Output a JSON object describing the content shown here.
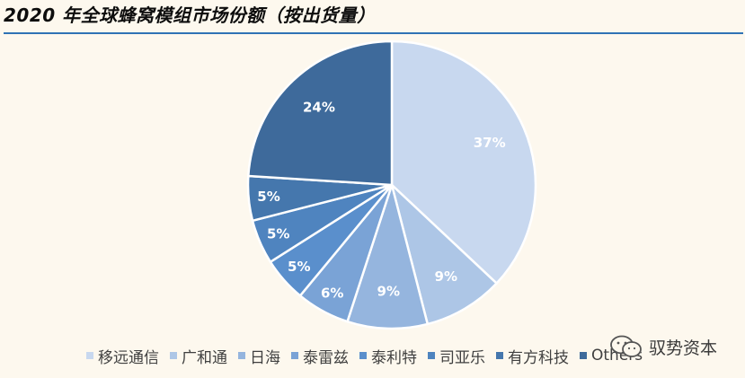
{
  "chart_data": {
    "type": "pie",
    "title": "2020 年全球蜂窝模组市场份额（按出货量）",
    "slices": [
      {
        "name": "移远通信",
        "value": 37,
        "label": "37%",
        "color": "#c8d8ef"
      },
      {
        "name": "广和通",
        "value": 9,
        "label": "9%",
        "color": "#adc6e6"
      },
      {
        "name": "日海",
        "value": 9,
        "label": "9%",
        "color": "#95b5de"
      },
      {
        "name": "泰雷兹",
        "value": 6,
        "label": "6%",
        "color": "#7aa3d6"
      },
      {
        "name": "泰利特",
        "value": 5,
        "label": "5%",
        "color": "#5a8fcc"
      },
      {
        "name": "司亚乐",
        "value": 5,
        "label": "5%",
        "color": "#4f84bf"
      },
      {
        "name": "有方科技",
        "value": 5,
        "label": "5%",
        "color": "#4577ad"
      },
      {
        "name": "Others",
        "value": 24,
        "label": "24%",
        "color": "#3e6a9b"
      }
    ],
    "legend_position": "bottom"
  },
  "watermark": {
    "text": "驭势资本",
    "icon": "wechat-icon"
  }
}
